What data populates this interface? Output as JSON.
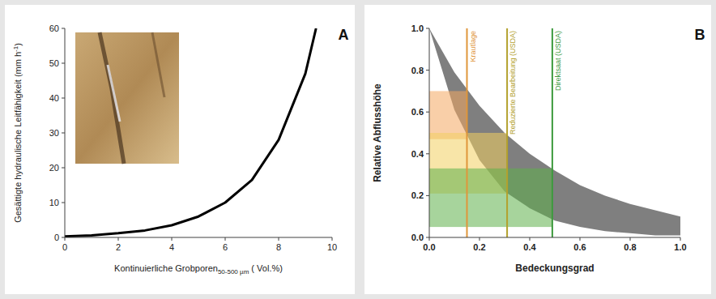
{
  "chart_data": [
    {
      "type": "line",
      "panel_label": "A",
      "x_label": "Kontinuierliche Grobporen",
      "x_label_subscript": "50-500 µm",
      "x_label_suffix": " ( Vol.%)",
      "y_label": "Gesättigte hydraulische Leitfähigkeit (mm h",
      "y_label_superscript": "-1",
      "y_label_suffix": ")",
      "x": [
        0,
        1,
        2,
        3,
        4,
        5,
        6,
        7,
        8,
        9,
        9.4
      ],
      "series": [
        {
          "values": [
            0.3,
            0.6,
            1.2,
            2,
            3.5,
            6,
            10,
            16.5,
            28,
            47,
            60
          ],
          "color": "#000000",
          "line_style": "solid"
        }
      ],
      "xlim": [
        0,
        10
      ],
      "xticks": [
        0,
        2,
        4,
        6,
        8,
        10
      ],
      "ylim": [
        0,
        60
      ],
      "yticks": [
        0,
        10,
        20,
        30,
        40,
        50,
        60
      ],
      "grid": false
    },
    {
      "type": "area",
      "panel_label": "B",
      "x_label": "Bedeckungsgrad",
      "y_label": "Relative Abflusshöhe",
      "x": [
        0,
        0.1,
        0.2,
        0.3,
        0.4,
        0.5,
        0.6,
        0.7,
        0.8,
        0.9,
        1.0
      ],
      "series": [
        {
          "type": "band",
          "color": "#7f7f7f",
          "upper": [
            1.0,
            0.79,
            0.63,
            0.5,
            0.4,
            0.32,
            0.25,
            0.2,
            0.16,
            0.13,
            0.1
          ],
          "lower": [
            1.0,
            0.61,
            0.37,
            0.22,
            0.14,
            0.08,
            0.05,
            0.03,
            0.02,
            0.01,
            0.01
          ]
        }
      ],
      "annotations": [
        {
          "label": "Krautlage",
          "x": 0.15,
          "y_low": 0.47,
          "y_high": 0.7,
          "color": "#e0963a",
          "fill": "#f4a860"
        },
        {
          "label": "Reduzierte Bearbeitung (USDA)",
          "x": 0.31,
          "y_low": 0.21,
          "y_high": 0.5,
          "color": "#b3a12c",
          "fill": "#f2d060"
        },
        {
          "label": "Direktsaat (USDA)",
          "x": 0.49,
          "y_low": 0.05,
          "y_high": 0.33,
          "color": "#3e9a3e",
          "fill": "#5fb04a"
        }
      ],
      "xlim": [
        0,
        1
      ],
      "xticks": [
        {
          "value": 0,
          "label": "0.0"
        },
        {
          "value": 0.2,
          "label": "0.2"
        },
        {
          "value": 0.4,
          "label": "0.4"
        },
        {
          "value": 0.6,
          "label": "0.6"
        },
        {
          "value": 0.8,
          "label": "0.8"
        },
        {
          "value": 1,
          "label": "1.0"
        }
      ],
      "ylim": [
        0,
        1
      ],
      "yticks": [
        {
          "value": 0,
          "label": "0.0"
        },
        {
          "value": 0.2,
          "label": "0.2"
        },
        {
          "value": 0.4,
          "label": "0.4"
        },
        {
          "value": 0.6,
          "label": "0.6"
        },
        {
          "value": 0.8,
          "label": "0.8"
        },
        {
          "value": 1,
          "label": "1.0"
        }
      ],
      "grid": false
    }
  ]
}
